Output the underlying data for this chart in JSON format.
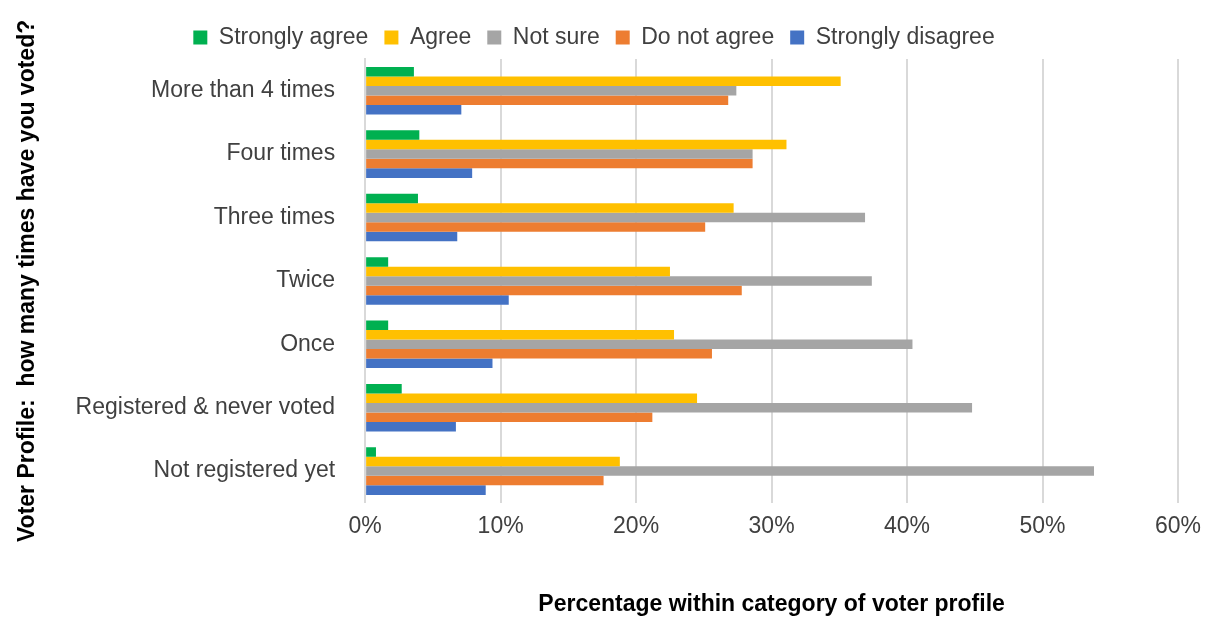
{
  "chart_data": {
    "type": "bar",
    "orientation": "horizontal",
    "xlabel": "Percentage within category of voter profile",
    "ylabel": "Voter Profile:  how many times have you voted?",
    "categories": [
      "More than 4 times",
      "Four times",
      "Three times",
      "Twice",
      "Once",
      "Registered & never voted",
      "Not registered yet"
    ],
    "series": [
      {
        "name": "Strongly agree",
        "color": "#00b050",
        "values": [
          3.6,
          4.0,
          3.9,
          1.7,
          1.7,
          2.7,
          0.8
        ]
      },
      {
        "name": "Agree",
        "color": "#ffc000",
        "values": [
          35.1,
          31.1,
          27.2,
          22.5,
          22.8,
          24.5,
          18.8
        ]
      },
      {
        "name": "Not sure",
        "color": "#a5a5a5",
        "values": [
          27.4,
          28.6,
          36.9,
          37.4,
          40.4,
          44.8,
          53.8
        ]
      },
      {
        "name": "Do not agree",
        "color": "#ed7d31",
        "values": [
          26.8,
          28.6,
          25.1,
          27.8,
          25.6,
          21.2,
          17.6
        ]
      },
      {
        "name": "Strongly disagree",
        "color": "#4472c4",
        "values": [
          7.1,
          7.9,
          6.8,
          10.6,
          9.4,
          6.7,
          8.9
        ]
      }
    ],
    "xlim": [
      0,
      60
    ],
    "xticks": [
      {
        "value": 0,
        "label": "0%"
      },
      {
        "value": 10,
        "label": "10%"
      },
      {
        "value": 20,
        "label": "20%"
      },
      {
        "value": 30,
        "label": "30%"
      },
      {
        "value": 40,
        "label": "40%"
      },
      {
        "value": 50,
        "label": "50%"
      },
      {
        "value": 60,
        "label": "60%"
      }
    ],
    "grid": "x",
    "legend": "top"
  }
}
